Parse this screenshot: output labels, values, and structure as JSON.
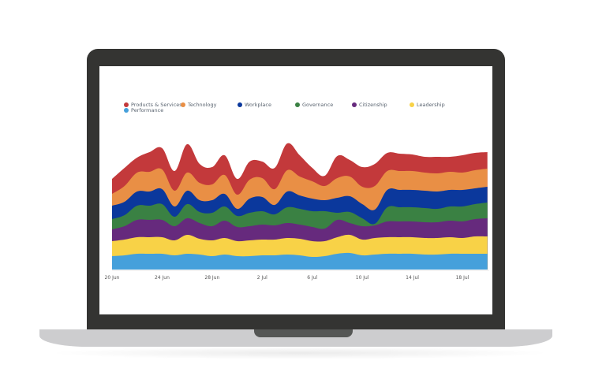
{
  "chart_data": {
    "type": "area",
    "stacked": true,
    "title": "",
    "xlabel": "",
    "ylabel": "",
    "ylim": [
      0,
      170
    ],
    "grid": false,
    "legend_placement": "top-left",
    "x": [
      "20 Jun",
      "21 Jun",
      "22 Jun",
      "23 Jun",
      "24 Jun",
      "25 Jun",
      "26 Jun",
      "27 Jun",
      "28 Jun",
      "29 Jun",
      "30 Jun",
      "1 Jul",
      "2 Jul",
      "3 Jul",
      "4 Jul",
      "5 Jul",
      "6 Jul",
      "7 Jul",
      "8 Jul",
      "9 Jul",
      "10 Jul",
      "11 Jul",
      "12 Jul",
      "13 Jul",
      "14 Jul",
      "15 Jul",
      "16 Jul",
      "17 Jul",
      "18 Jul",
      "19 Jul",
      "20 Jul"
    ],
    "x_tick_labels": [
      "20 Jun",
      "24 Jun",
      "28 Jun",
      "2 Jul",
      "6 Jul",
      "10 Jul",
      "14 Jul",
      "18 Jul"
    ],
    "series": [
      {
        "name": "Performance",
        "color": "#45a0db",
        "values": [
          17,
          18,
          20,
          20,
          20,
          18,
          20,
          19,
          17,
          19,
          17,
          17,
          18,
          18,
          19,
          18,
          16,
          17,
          20,
          21,
          18,
          19,
          20,
          20,
          20,
          19,
          19,
          20,
          20,
          20,
          20
        ]
      },
      {
        "name": "Leadership",
        "color": "#f8d247",
        "values": [
          19,
          20,
          21,
          21,
          21,
          19,
          24,
          20,
          20,
          21,
          19,
          20,
          20,
          20,
          21,
          21,
          20,
          19,
          21,
          23,
          20,
          21,
          21,
          21,
          21,
          21,
          21,
          21,
          20,
          22,
          22
        ]
      },
      {
        "name": "Citizenship",
        "color": "#662a7d",
        "values": [
          15,
          17,
          22,
          22,
          22,
          18,
          21,
          20,
          18,
          22,
          18,
          18,
          19,
          18,
          19,
          18,
          18,
          16,
          22,
          15,
          17,
          16,
          20,
          20,
          20,
          20,
          20,
          21,
          21,
          22,
          23
        ]
      },
      {
        "name": "Governance",
        "color": "#3a8143",
        "values": [
          13,
          14,
          18,
          18,
          20,
          12,
          18,
          14,
          17,
          18,
          14,
          17,
          17,
          14,
          20,
          20,
          20,
          22,
          9,
          14,
          10,
          2,
          18,
          18,
          18,
          18,
          17,
          18,
          19,
          19,
          20
        ]
      },
      {
        "name": "Workplace",
        "color": "#0b389c",
        "values": [
          17,
          17,
          18,
          18,
          19,
          13,
          17,
          15,
          16,
          16,
          9,
          18,
          18,
          12,
          20,
          17,
          16,
          14,
          19,
          20,
          18,
          18,
          22,
          22,
          22,
          22,
          22,
          21,
          21,
          20,
          20
        ]
      },
      {
        "name": "Technology",
        "color": "#e98f45",
        "values": [
          15,
          20,
          24,
          25,
          25,
          20,
          23,
          22,
          20,
          24,
          18,
          24,
          24,
          20,
          27,
          24,
          22,
          18,
          25,
          25,
          22,
          30,
          24,
          24,
          24,
          23,
          23,
          23,
          22,
          23,
          23
        ]
      },
      {
        "name": "Products & Services",
        "color": "#c3393b",
        "values": [
          19,
          23,
          19,
          25,
          27,
          25,
          36,
          24,
          22,
          25,
          20,
          23,
          21,
          27,
          34,
          27,
          17,
          13,
          28,
          21,
          25,
          28,
          23,
          22,
          21,
          20,
          21,
          19,
          22,
          22,
          21
        ]
      }
    ],
    "legend": [
      "Products & Services",
      "Technology",
      "Workplace",
      "Governance",
      "Citizenship",
      "Leadership",
      "Performance"
    ]
  }
}
